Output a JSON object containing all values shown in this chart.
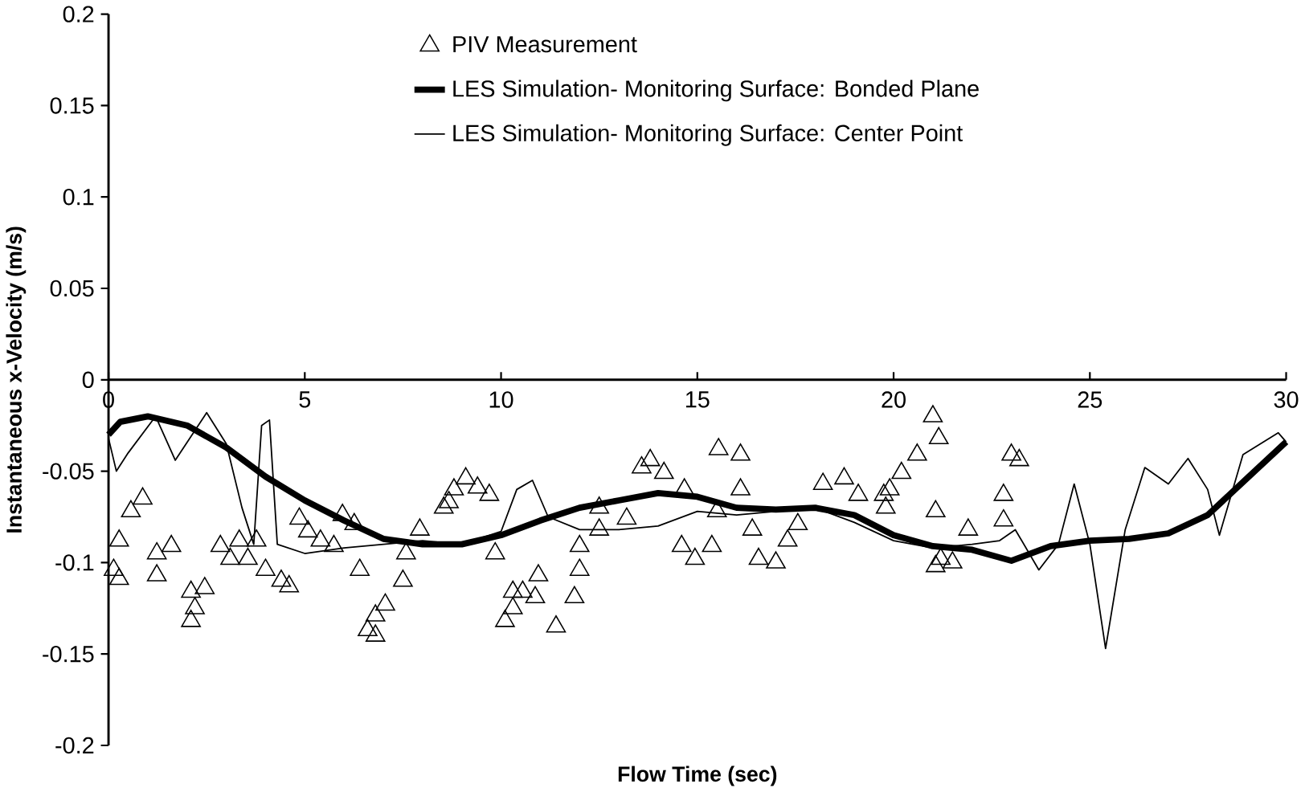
{
  "chart_data": {
    "type": "line",
    "xlabel": "Flow Time (sec)",
    "ylabel": "Instantaneous x-Velocity (m/s)",
    "xlim": [
      0,
      30
    ],
    "ylim": [
      -0.2,
      0.2
    ],
    "xticks": [
      0,
      5,
      10,
      15,
      20,
      25,
      30
    ],
    "yticks": [
      -0.2,
      -0.15,
      -0.1,
      -0.05,
      0,
      0.05,
      0.1,
      0.15,
      0.2
    ],
    "grid": false,
    "legend": "top",
    "series": [
      {
        "name": "PIV Measurement",
        "type": "scatter",
        "marker": "triangle",
        "color": "#000000",
        "x": [
          0.87,
          0.57,
          0.27,
          0.13,
          0.27,
          1.23,
          1.6,
          1.23,
          2.1,
          2.2,
          2.1,
          2.45,
          2.85,
          3.1,
          3.33,
          3.77,
          3.55,
          4.0,
          4.4,
          4.6,
          4.86,
          5.08,
          5.4,
          5.96,
          6.26,
          5.74,
          6.4,
          6.8,
          6.6,
          6.8,
          7.05,
          7.5,
          7.93,
          7.58,
          8.8,
          9.1,
          9.4,
          9.7,
          8.54,
          8.67,
          9.85,
          10.3,
          10.3,
          10.1,
          10.55,
          10.95,
          10.87,
          11.4,
          11.87,
          12.0,
          12.0,
          12.5,
          12.5,
          13.2,
          13.58,
          13.8,
          14.15,
          14.67,
          14.6,
          14.94,
          15.37,
          15.54,
          16.1,
          15.5,
          16.1,
          16.4,
          16.56,
          17.0,
          17.3,
          17.56,
          18.2,
          18.74,
          19.1,
          19.75,
          21.0,
          21.15,
          20.6,
          20.2,
          19.9,
          19.8,
          21.07,
          21.2,
          21.07,
          21.5,
          21.9,
          22.8,
          22.8,
          23.2,
          23.0
        ],
        "values": [
          -0.065,
          -0.072,
          -0.088,
          -0.104,
          -0.109,
          -0.095,
          -0.091,
          -0.107,
          -0.116,
          -0.125,
          -0.132,
          -0.114,
          -0.091,
          -0.098,
          -0.088,
          -0.088,
          -0.098,
          -0.104,
          -0.11,
          -0.113,
          -0.076,
          -0.083,
          -0.088,
          -0.074,
          -0.079,
          -0.091,
          -0.104,
          -0.129,
          -0.137,
          -0.14,
          -0.123,
          -0.11,
          -0.082,
          -0.095,
          -0.06,
          -0.054,
          -0.059,
          -0.063,
          -0.07,
          -0.067,
          -0.095,
          -0.116,
          -0.125,
          -0.132,
          -0.116,
          -0.107,
          -0.119,
          -0.135,
          -0.119,
          -0.104,
          -0.091,
          -0.07,
          -0.082,
          -0.076,
          -0.048,
          -0.044,
          -0.051,
          -0.06,
          -0.091,
          -0.098,
          -0.091,
          -0.038,
          -0.041,
          -0.072,
          -0.06,
          -0.082,
          -0.098,
          -0.1,
          -0.088,
          -0.079,
          -0.057,
          -0.054,
          -0.063,
          -0.063,
          -0.02,
          -0.032,
          -0.041,
          -0.051,
          -0.06,
          -0.07,
          -0.072,
          -0.098,
          -0.102,
          -0.1,
          -0.082,
          -0.063,
          -0.077,
          -0.044,
          -0.041
        ]
      },
      {
        "name": "LES Simulation-  Monitoring Surface: Bonded Plane",
        "marker": "none",
        "line_style": "solid",
        "color": "#000000",
        "x": [
          0,
          0.3,
          1,
          2,
          3,
          4,
          5,
          6,
          7,
          8,
          9,
          10,
          11,
          12,
          13,
          14,
          15,
          16,
          17,
          18,
          19,
          20,
          21,
          22,
          23,
          24,
          25,
          26,
          27,
          28,
          29,
          30
        ],
        "values": [
          -0.03,
          -0.023,
          -0.02,
          -0.025,
          -0.037,
          -0.053,
          -0.066,
          -0.077,
          -0.087,
          -0.09,
          -0.09,
          -0.085,
          -0.077,
          -0.07,
          -0.066,
          -0.062,
          -0.064,
          -0.07,
          -0.071,
          -0.07,
          -0.074,
          -0.085,
          -0.091,
          -0.093,
          -0.099,
          -0.091,
          -0.088,
          -0.087,
          -0.084,
          -0.074,
          -0.054,
          -0.034
        ]
      },
      {
        "name": "LES Simulation-  Monitoring Surface: Center Point",
        "marker": "none",
        "line_style": "solid",
        "color": "#000000",
        "x": [
          0,
          0.2,
          0.5,
          1.2,
          1.7,
          2.5,
          3.0,
          3.4,
          3.7,
          3.9,
          4.1,
          4.3,
          5,
          6,
          7,
          8,
          9,
          10,
          10.4,
          10.8,
          11.2,
          12,
          13,
          14,
          15,
          16,
          17,
          18,
          19,
          20,
          21,
          22,
          22.7,
          23.1,
          23.7,
          24.2,
          24.6,
          25.0,
          25.4,
          25.9,
          26.4,
          27.0,
          27.5,
          28.0,
          28.3,
          28.9,
          29.8,
          30
        ],
        "values": [
          -0.032,
          -0.05,
          -0.04,
          -0.02,
          -0.044,
          -0.018,
          -0.035,
          -0.07,
          -0.09,
          -0.025,
          -0.022,
          -0.09,
          -0.095,
          -0.092,
          -0.09,
          -0.088,
          -0.09,
          -0.083,
          -0.06,
          -0.055,
          -0.075,
          -0.082,
          -0.082,
          -0.08,
          -0.072,
          -0.074,
          -0.072,
          -0.07,
          -0.078,
          -0.088,
          -0.092,
          -0.09,
          -0.088,
          -0.082,
          -0.104,
          -0.09,
          -0.057,
          -0.09,
          -0.147,
          -0.082,
          -0.048,
          -0.057,
          -0.043,
          -0.06,
          -0.085,
          -0.041,
          -0.029,
          -0.034
        ]
      }
    ]
  }
}
